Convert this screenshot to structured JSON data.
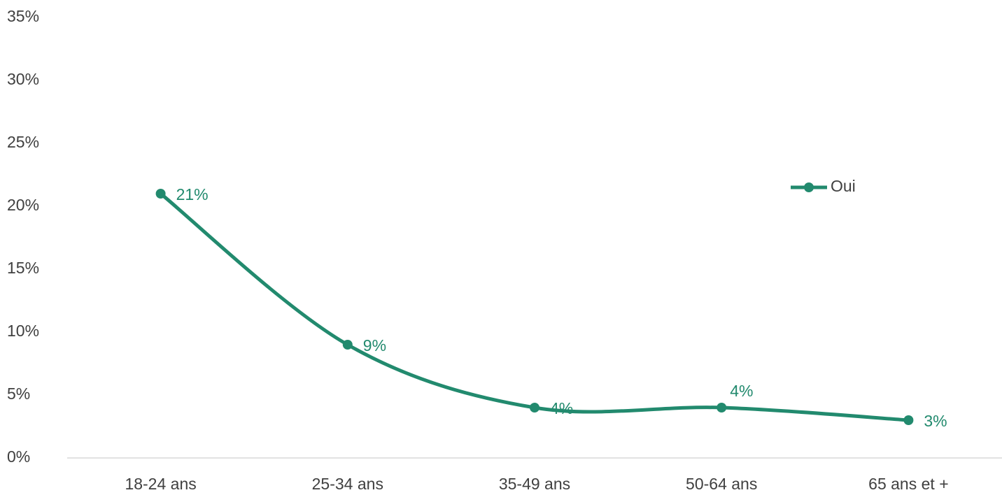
{
  "chart_data": {
    "type": "line",
    "categories": [
      "18-24 ans",
      "25-34 ans",
      "35-49 ans",
      "50-64 ans",
      "65 ans et +"
    ],
    "series": [
      {
        "name": "Oui",
        "values": [
          21,
          9,
          4,
          4,
          3
        ],
        "labels": [
          "21%",
          "9%",
          "4%",
          "4%",
          "3%"
        ]
      }
    ],
    "ylim": [
      0,
      35
    ],
    "yticks": [
      0,
      5,
      10,
      15,
      20,
      25,
      30,
      35
    ],
    "ytick_labels": [
      "0%",
      "5%",
      "10%",
      "15%",
      "20%",
      "25%",
      "30%",
      "35%"
    ],
    "grid": false,
    "smooth": true,
    "legend_position": "right",
    "colors": {
      "series": "#228a6e",
      "axis": "#d9d9d9",
      "text": "#404040"
    }
  }
}
